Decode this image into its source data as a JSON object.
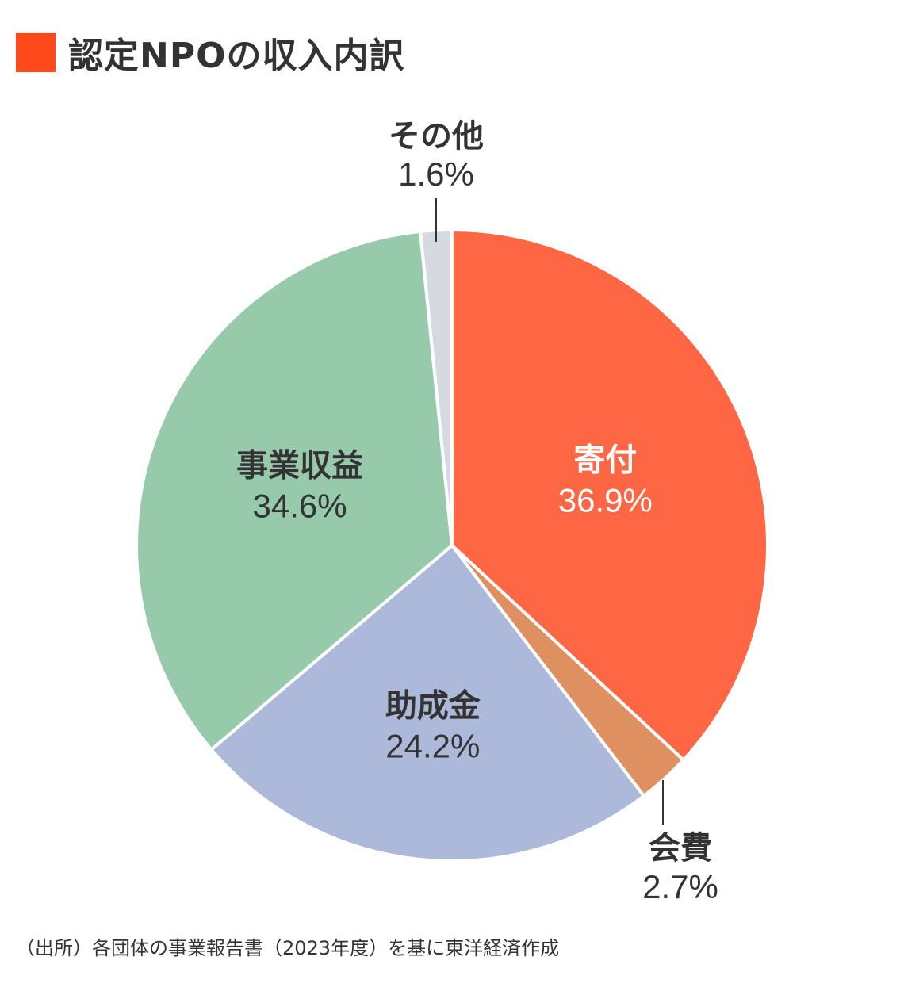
{
  "title": "認定NPOの収入内訳",
  "accent_color": "#FF4A1C",
  "source": "（出所）各団体の事業報告書（2023年度）を基に東洋経済作成",
  "chart_data": {
    "type": "pie",
    "title": "認定NPOの収入内訳",
    "unit": "%",
    "start_angle_deg": 0,
    "direction": "clockwise",
    "slices": [
      {
        "label": "寄付",
        "value": 36.9,
        "value_label": "36.9%",
        "color": "#FF6644",
        "text_color": "#FFFFFF"
      },
      {
        "label": "会費",
        "value": 2.7,
        "value_label": "2.7%",
        "color": "#DE9060",
        "text_color": "#333333"
      },
      {
        "label": "助成金",
        "value": 24.2,
        "value_label": "24.2%",
        "color": "#ADB9DA",
        "text_color": "#333333"
      },
      {
        "label": "事業収益",
        "value": 34.6,
        "value_label": "34.6%",
        "color": "#96CAAB",
        "text_color": "#333333"
      },
      {
        "label": "その他",
        "value": 1.6,
        "value_label": "1.6%",
        "color": "#D5DAE1",
        "text_color": "#333333"
      }
    ]
  }
}
